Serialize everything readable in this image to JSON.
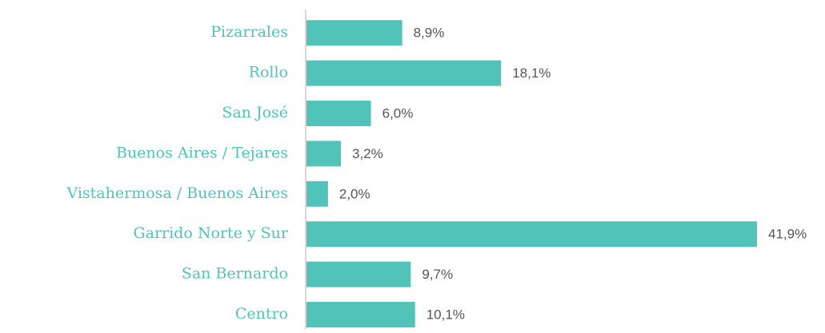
{
  "chart_data": {
    "type": "bar",
    "orientation": "horizontal",
    "categories": [
      "Pizarrales",
      "Rollo",
      "San José",
      "Buenos Aires / Tejares",
      "Vistahermosa / Buenos Aires",
      "Garrido Norte y Sur",
      "San Bernardo",
      "Centro"
    ],
    "values": [
      8.9,
      18.1,
      6.0,
      3.2,
      2.0,
      41.9,
      9.7,
      10.1
    ],
    "value_labels": [
      "8,9%",
      "18,1%",
      "6,0%",
      "3,2%",
      "2,0%",
      "41,9%",
      "9,7%",
      "10,1%"
    ],
    "color": "#52c3b9"
  }
}
